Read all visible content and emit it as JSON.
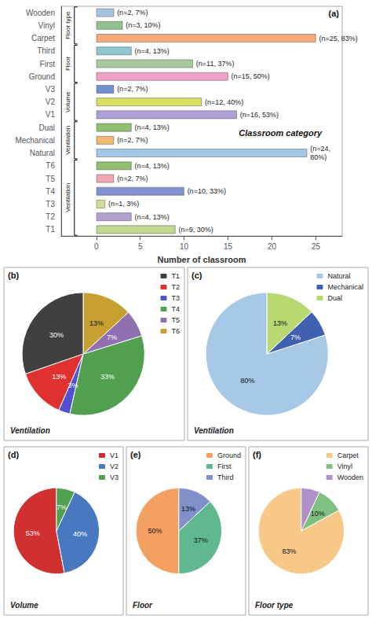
{
  "chart_data": [
    {
      "type": "bar",
      "orientation": "horizontal",
      "categories": [
        "Wooden",
        "Vinyl",
        "Carpet",
        "Third",
        "First",
        "Ground",
        "V3",
        "V2",
        "V1",
        "Dual",
        "Mechanical",
        "Natural",
        "T6",
        "T5",
        "T4",
        "T3",
        "T2",
        "T1"
      ],
      "values": [
        2,
        3,
        25,
        4,
        11,
        15,
        2,
        12,
        16,
        4,
        2,
        24,
        4,
        2,
        10,
        1,
        4,
        9
      ],
      "value_labels": [
        "(n=2, 7%)",
        "(n=3, 10%)",
        "(n=25, 83%)",
        "(n=4, 13%)",
        "(n=11, 37%)",
        "(n=15, 50%)",
        "(n=2, 7%)",
        "(n=12, 40%)",
        "(n=16, 53%)",
        "(n=4, 13%)",
        "(n=2, 7%)",
        "(n=24,\n80%)",
        "(n=4, 13%)",
        "(n=2, 7%)",
        "(n=10, 33%)",
        "(n=1, 3%)",
        "(n=4, 13%)",
        "(n=9, 30%)"
      ],
      "colors": [
        "#a8c4e0",
        "#90c090",
        "#f4a97a",
        "#90c8d0",
        "#a8c8a0",
        "#f0a0c8",
        "#7090d0",
        "#d8e060",
        "#b0a0d8",
        "#90c070",
        "#f0b870",
        "#a0c8e8",
        "#90c070",
        "#f0a8b0",
        "#8090d0",
        "#d0e090",
        "#b0a0d0",
        "#c0d890"
      ],
      "xlabel": "Number of classroom",
      "xlim": [
        -4,
        28
      ],
      "xticks": [
        0,
        5,
        10,
        15,
        20,
        25
      ],
      "grid": false,
      "data_labels": true,
      "annotations": [
        "(a)",
        "Classroom category"
      ],
      "groups": [
        {
          "label": "Floor type",
          "categories": [
            "Wooden",
            "Vinyl",
            "Carpet"
          ]
        },
        {
          "label": "Floor",
          "categories": [
            "Third",
            "First",
            "Ground"
          ]
        },
        {
          "label": "Volume",
          "categories": [
            "V3",
            "V2",
            "V1"
          ]
        },
        {
          "label": "Ventilation",
          "categories": [
            "Dual",
            "Mechanical",
            "Natural"
          ]
        },
        {
          "label": "Ventilation",
          "categories": [
            "T6",
            "T5",
            "T4",
            "T3",
            "T2",
            "T1"
          ]
        }
      ]
    },
    {
      "type": "pie",
      "title": "Ventilation",
      "annotations": [
        "(b)"
      ],
      "categories": [
        "T1",
        "T2",
        "T3",
        "T4",
        "T5",
        "T6"
      ],
      "values": [
        30,
        13,
        3,
        33,
        7,
        13
      ],
      "value_labels": [
        "30%",
        "13%",
        "3%",
        "33%",
        "7%",
        "13%"
      ],
      "colors": [
        "#404040",
        "#e03030",
        "#5050d0",
        "#50a050",
        "#9070b0",
        "#c8a030"
      ],
      "legend": "upper right",
      "data_labels": true
    },
    {
      "type": "pie",
      "title": "Ventilation",
      "annotations": [
        "(c)"
      ],
      "categories": [
        "Natural",
        "Mechanical",
        "Dual"
      ],
      "values": [
        80,
        7,
        13
      ],
      "value_labels": [
        "80%",
        "7%",
        "13%"
      ],
      "colors": [
        "#a8c8e8",
        "#4060b0",
        "#b8d870"
      ],
      "legend": "upper right",
      "data_labels": true
    },
    {
      "type": "pie",
      "title": "Volume",
      "annotations": [
        "(d)"
      ],
      "categories": [
        "V1",
        "V2",
        "V3"
      ],
      "values": [
        53,
        40,
        7
      ],
      "value_labels": [
        "53%",
        "40%",
        "7%"
      ],
      "colors": [
        "#d03030",
        "#4878c0",
        "#50a050"
      ],
      "legend": "upper right",
      "data_labels": true
    },
    {
      "type": "pie",
      "title": "Floor",
      "annotations": [
        "(e)"
      ],
      "categories": [
        "Ground",
        "First",
        "Third"
      ],
      "values": [
        50,
        37,
        13
      ],
      "value_labels": [
        "50%",
        "37%",
        "13%"
      ],
      "colors": [
        "#f4a060",
        "#60b890",
        "#8090c8"
      ],
      "legend": "upper right",
      "data_labels": true
    },
    {
      "type": "pie",
      "title": "Floor type",
      "annotations": [
        "(f)"
      ],
      "categories": [
        "Carpet",
        "Vinyl",
        "Wooden"
      ],
      "values": [
        83,
        10,
        7
      ],
      "value_labels": [
        "83%",
        "10%",
        "7%"
      ],
      "colors": [
        "#f8c888",
        "#80c080",
        "#b090c8"
      ],
      "legend": "upper right",
      "data_labels": true
    }
  ]
}
